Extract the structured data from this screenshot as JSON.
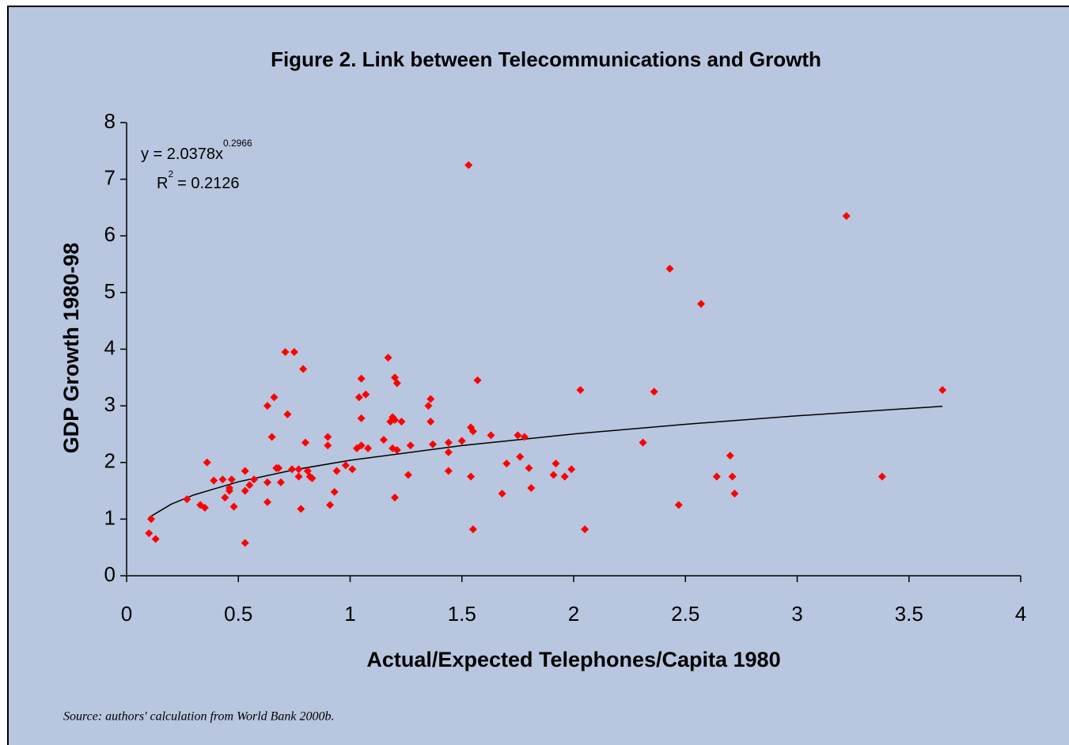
{
  "chart_data": {
    "type": "scatter",
    "title": "Figure 2. Link between Telecommunications and Growth",
    "x_label": "Actual/Expected Telephones/Capita 1980",
    "y_label": "GDP Growth 1980-98",
    "source": "Source: authors' calculation from World Bank 2000b.",
    "equation": {
      "base": "y = 2.0378x",
      "exponent": "0.2966"
    },
    "r_squared": {
      "base": "R",
      "exponent": "2",
      "rest": "= 0.2126"
    },
    "color": "#ff0000",
    "x": [
      0.1,
      0.11,
      0.13,
      0.27,
      0.33,
      0.35,
      0.36,
      0.39,
      0.43,
      0.44,
      0.46,
      0.47,
      0.48,
      0.46,
      0.53,
      0.53,
      0.53,
      0.55,
      0.57,
      0.63,
      0.63,
      0.63,
      0.65,
      0.66,
      0.67,
      0.68,
      0.69,
      0.71,
      0.72,
      0.74,
      0.75,
      0.77,
      0.77,
      0.78,
      0.79,
      0.8,
      0.81,
      0.82,
      0.83,
      0.9,
      0.9,
      0.91,
      0.93,
      0.94,
      0.98,
      1.01,
      1.03,
      1.04,
      1.05,
      1.05,
      1.05,
      1.07,
      1.08,
      1.15,
      1.17,
      1.18,
      1.19,
      1.2,
      1.19,
      1.2,
      1.21,
      1.2,
      1.21,
      1.23,
      1.26,
      1.27,
      1.35,
      1.36,
      1.36,
      1.37,
      1.44,
      1.44,
      1.44,
      1.5,
      1.53,
      1.54,
      1.54,
      1.55,
      1.55,
      1.57,
      1.63,
      1.68,
      1.7,
      1.75,
      1.76,
      1.78,
      1.8,
      1.81,
      1.91,
      1.92,
      1.96,
      1.99,
      2.03,
      2.05,
      2.31,
      2.36,
      2.43,
      2.47,
      2.57,
      2.64,
      2.7,
      2.71,
      2.72,
      3.22,
      3.38,
      3.65
    ],
    "values": [
      0.75,
      1.0,
      0.65,
      1.35,
      1.25,
      1.2,
      2.0,
      1.68,
      1.7,
      1.38,
      1.55,
      1.7,
      1.22,
      1.5,
      1.5,
      1.85,
      0.58,
      1.6,
      1.7,
      1.3,
      1.65,
      3.0,
      2.45,
      3.15,
      1.9,
      1.9,
      1.65,
      3.95,
      2.85,
      1.88,
      3.95,
      1.88,
      1.75,
      1.18,
      3.65,
      2.35,
      1.85,
      1.75,
      1.72,
      2.45,
      2.3,
      1.25,
      1.48,
      1.85,
      1.95,
      1.88,
      2.25,
      3.15,
      2.78,
      3.48,
      2.3,
      3.2,
      2.25,
      2.4,
      3.85,
      2.72,
      2.8,
      2.75,
      2.25,
      1.38,
      2.22,
      3.5,
      3.4,
      2.72,
      1.78,
      2.3,
      3.0,
      3.12,
      2.72,
      2.32,
      2.35,
      2.18,
      1.85,
      2.38,
      7.25,
      1.75,
      2.62,
      2.55,
      0.82,
      3.45,
      2.48,
      1.45,
      1.98,
      2.48,
      2.1,
      2.45,
      1.9,
      1.55,
      1.78,
      1.98,
      1.75,
      1.88,
      3.28,
      0.82,
      2.35,
      3.25,
      5.42,
      1.25,
      4.8,
      1.75,
      2.12,
      1.75,
      1.45,
      6.35,
      1.75,
      3.28
    ],
    "trendline": {
      "color": "#000000",
      "x": [
        0.1,
        0.2,
        0.3,
        0.5,
        0.75,
        1,
        1.5,
        2,
        2.5,
        3,
        3.65
      ],
      "values": [
        1.029,
        1.264,
        1.426,
        1.659,
        1.871,
        2.038,
        2.298,
        2.503,
        2.674,
        2.823,
        2.992
      ]
    },
    "xlim": [
      0,
      4
    ],
    "xticks": [
      0,
      0.5,
      1,
      1.5,
      2,
      2.5,
      3,
      3.5,
      4
    ],
    "ylim": [
      0,
      8
    ],
    "yticks": [
      0,
      1,
      2,
      3,
      4,
      5,
      6,
      7,
      8
    ]
  }
}
